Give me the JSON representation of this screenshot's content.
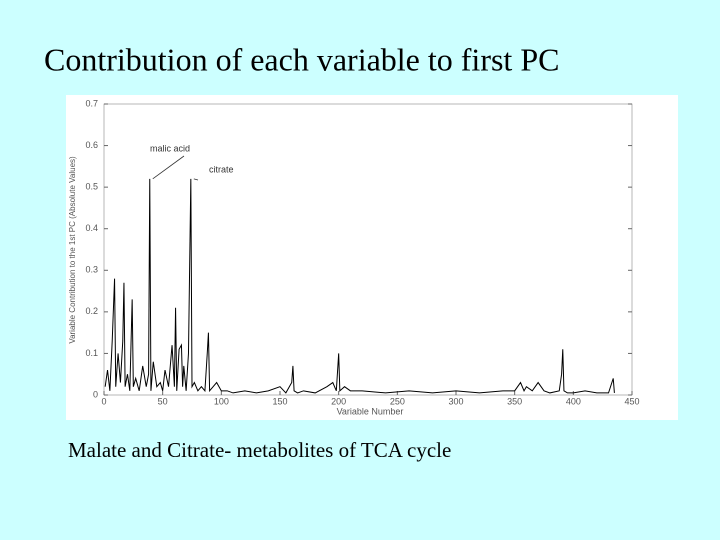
{
  "slide": {
    "title": "Contribution of each variable to first PC",
    "caption": "Malate and Citrate- metabolites of TCA cycle"
  },
  "chart_data": {
    "type": "line",
    "x_label": "Variable Number",
    "y_label": "Variable Contribution to the 1st PC (Absolute Values)",
    "annotations": [
      "malic acid",
      "citrate"
    ],
    "color": "#000000",
    "x": [
      1,
      3,
      5,
      7,
      9,
      10,
      12,
      14,
      16,
      17,
      18,
      20,
      22,
      24,
      25,
      27,
      30,
      33,
      36,
      38,
      39,
      40,
      42,
      45,
      48,
      50,
      52,
      55,
      58,
      60,
      61,
      62,
      64,
      66,
      67,
      68,
      70,
      72,
      74,
      75,
      77,
      80,
      83,
      86,
      88,
      89,
      90,
      93,
      96,
      100,
      105,
      110,
      120,
      130,
      140,
      150,
      155,
      160,
      161,
      162,
      165,
      170,
      180,
      190,
      195,
      198,
      200,
      201,
      205,
      210,
      220,
      240,
      260,
      280,
      300,
      320,
      340,
      350,
      355,
      358,
      360,
      365,
      370,
      375,
      380,
      388,
      390,
      391,
      392,
      395,
      400,
      410,
      420,
      430,
      434,
      435
    ],
    "values": [
      0.02,
      0.06,
      0.01,
      0.13,
      0.28,
      0.02,
      0.1,
      0.03,
      0.13,
      0.27,
      0.02,
      0.05,
      0.01,
      0.23,
      0.02,
      0.04,
      0.01,
      0.07,
      0.02,
      0.05,
      0.52,
      0.01,
      0.08,
      0.02,
      0.03,
      0.01,
      0.06,
      0.02,
      0.12,
      0.02,
      0.21,
      0.01,
      0.11,
      0.12,
      0.02,
      0.07,
      0.01,
      0.1,
      0.52,
      0.02,
      0.03,
      0.01,
      0.02,
      0.01,
      0.1,
      0.15,
      0.01,
      0.02,
      0.03,
      0.01,
      0.01,
      0.005,
      0.01,
      0.005,
      0.01,
      0.02,
      0.005,
      0.03,
      0.07,
      0.01,
      0.005,
      0.01,
      0.005,
      0.02,
      0.03,
      0.01,
      0.1,
      0.01,
      0.02,
      0.01,
      0.01,
      0.005,
      0.01,
      0.005,
      0.01,
      0.005,
      0.01,
      0.01,
      0.03,
      0.01,
      0.02,
      0.01,
      0.03,
      0.01,
      0.005,
      0.01,
      0.05,
      0.11,
      0.01,
      0.005,
      0.005,
      0.01,
      0.005,
      0.005,
      0.04,
      0.005
    ],
    "xlim": [
      0,
      450
    ],
    "xticks": [
      0,
      50,
      100,
      150,
      200,
      250,
      300,
      350,
      400,
      450
    ],
    "ylim": [
      0,
      0.7
    ],
    "yticks": [
      0,
      0.1,
      0.2,
      0.3,
      0.4,
      0.5,
      0.6,
      0.7
    ]
  }
}
